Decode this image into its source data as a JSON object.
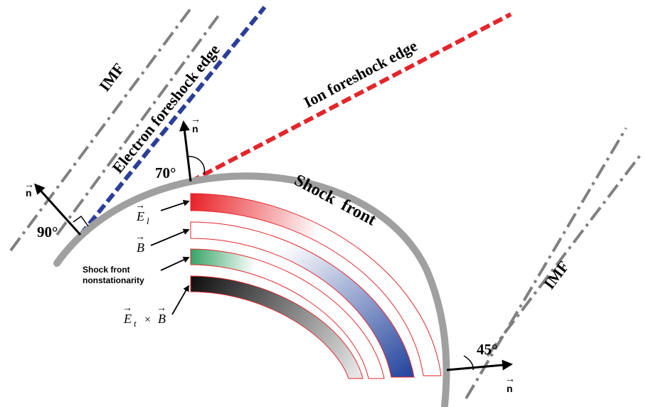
{
  "labels": {
    "imf_left": "IMF",
    "imf_right": "IMF",
    "electron_edge": "Electron foreshock edge",
    "ion_edge": "Ion foreshock edge",
    "shock_front": "Shock  front",
    "angle_90": "90°",
    "angle_70": "70°",
    "angle_45": "45°",
    "normal_symbol": "n",
    "normal_arrow": "→",
    "field_el": "E",
    "field_el_sub": "l",
    "field_b": "B",
    "field_et": "E",
    "field_et_sub": "t",
    "cross": "×",
    "nonstationarity_line1": "Shock front",
    "nonstationarity_line2": "nonstationarity"
  },
  "colors": {
    "imf_lines": "#808080",
    "electron_edge": "#2b3f99",
    "ion_edge": "#e3262b",
    "shock_front": "#a0a0a0",
    "band_el": "#e8262b",
    "band_b": "#2a4aa0",
    "band_nonstationarity": "#3aa56a",
    "band_et_x_b": "#111111",
    "band_outline": "#e3262b"
  }
}
